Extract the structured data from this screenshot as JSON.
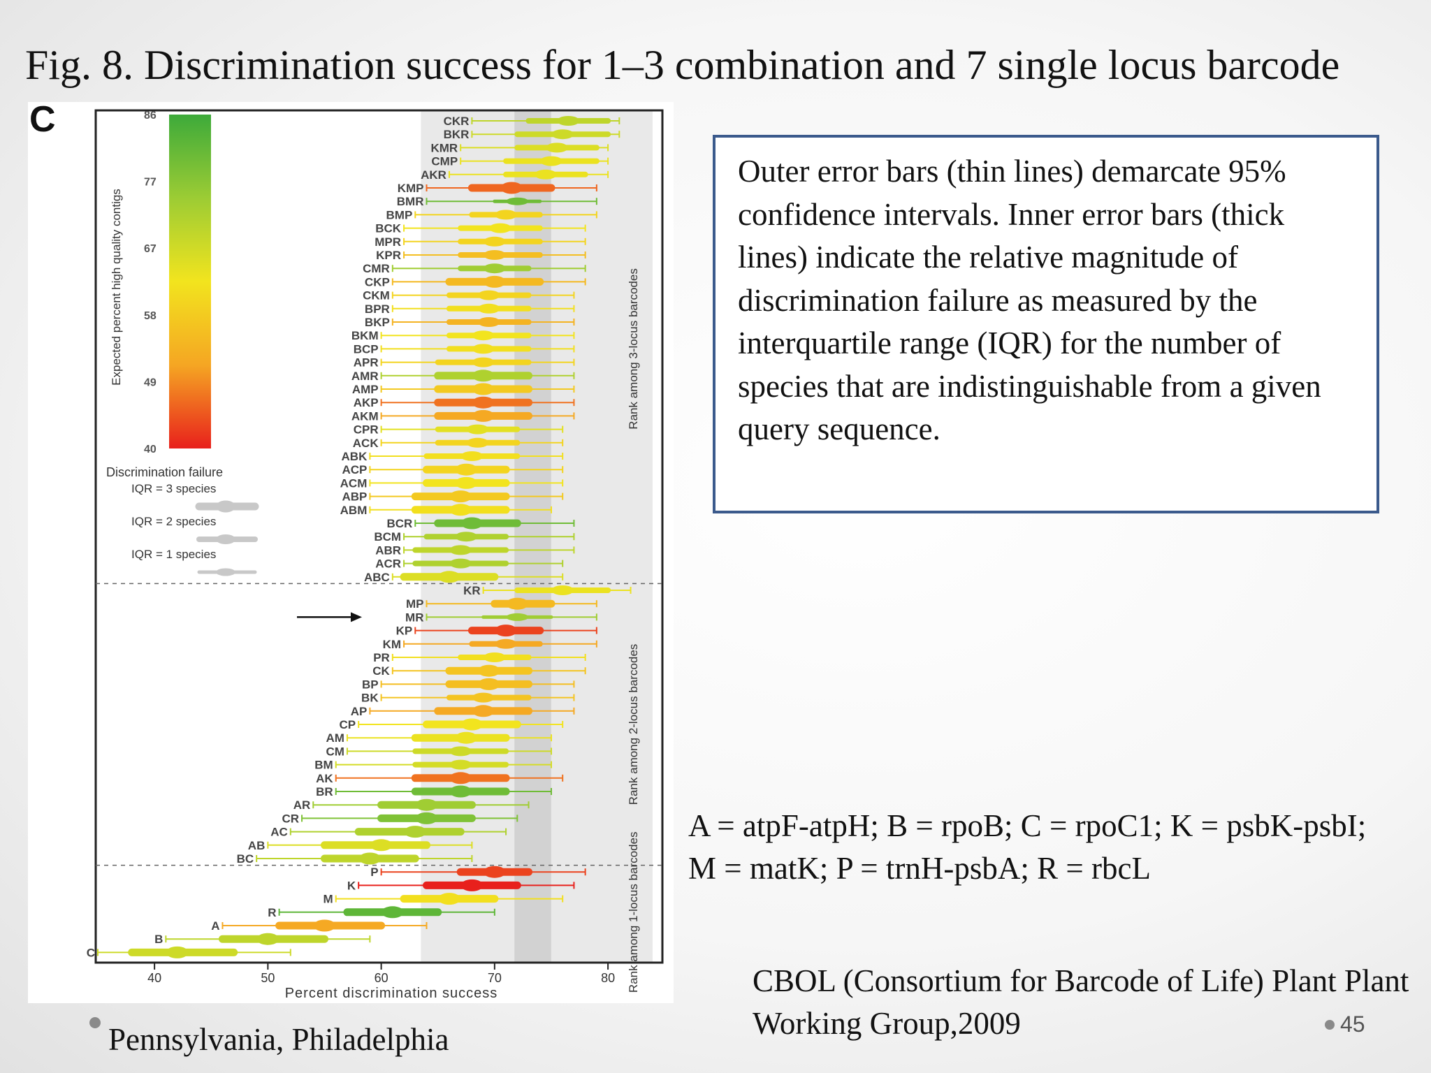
{
  "slide": {
    "title": "Fig. 8. Discrimination success for 1–3 combination and 7 single locus barcode",
    "description": "Outer error bars (thin lines) demarcate 95% confidence intervals. Inner error bars (thick lines) indicate the relative magnitude of discrimination failure as measured by the interquartile range (IQR) for the number of species that are indistinguishable from a given query sequence.",
    "legend_text": "A = atpF-atpH; B = rpoB; C = rpoC1; K = psbK-psbI; M = matK; P = trnH-psbA; R = rbcL",
    "citation": "CBOL (Consortium for Barcode of Life) Plant Plant Working Group,2009",
    "location": "Pennsylvania, Philadelphia",
    "page_number": "45"
  },
  "chart_data": {
    "type": "scatter",
    "panel_label": "C",
    "xlabel": "Percent discrimination success",
    "xticks": [
      40,
      50,
      60,
      70,
      80
    ],
    "xlim": [
      35,
      84
    ],
    "vertical_band": [
      72,
      74
    ],
    "colorbar": {
      "label": "Expected percent high quality contigs",
      "ticks": [
        86,
        77,
        67,
        58,
        49,
        40
      ],
      "colors": [
        "#3daa3a",
        "#9ccc34",
        "#f2e41e",
        "#f5a623",
        "#e8201c"
      ]
    },
    "iqr_legend": {
      "title": "Discrimination failure",
      "items": [
        "IQR = 3 species",
        "IQR = 2 species",
        "IQR = 1 species"
      ]
    },
    "groups": [
      {
        "label": "Rank among 3-locus barcodes"
      },
      {
        "label": "Rank among 2-locus barcodes"
      },
      {
        "label": "Rank among 1-locus barcodes"
      }
    ],
    "series": [
      {
        "name": "CKR",
        "group": 0,
        "value": 76.5,
        "ci": [
          68,
          81
        ],
        "iqr": [
          73,
          80
        ],
        "quality": 70,
        "iqr_species": 2
      },
      {
        "name": "BKR",
        "group": 0,
        "value": 76,
        "ci": [
          68,
          81
        ],
        "iqr": [
          72,
          80
        ],
        "quality": 68,
        "iqr_species": 2
      },
      {
        "name": "KMR",
        "group": 0,
        "value": 75.5,
        "ci": [
          67,
          80
        ],
        "iqr": [
          72,
          79
        ],
        "quality": 66,
        "iqr_species": 2
      },
      {
        "name": "CMP",
        "group": 0,
        "value": 75,
        "ci": [
          67,
          80
        ],
        "iqr": [
          71,
          79
        ],
        "quality": 64,
        "iqr_species": 2
      },
      {
        "name": "AKR",
        "group": 0,
        "value": 74.5,
        "ci": [
          66,
          80
        ],
        "iqr": [
          71,
          78
        ],
        "quality": 64,
        "iqr_species": 2
      },
      {
        "name": "KMP",
        "group": 0,
        "value": 71.5,
        "ci": [
          64,
          79
        ],
        "iqr": [
          68,
          75
        ],
        "quality": 46,
        "iqr_species": 3
      },
      {
        "name": "BMR",
        "group": 0,
        "value": 72,
        "ci": [
          64,
          79
        ],
        "iqr": [
          70,
          74
        ],
        "quality": 80,
        "iqr_species": 1
      },
      {
        "name": "BMP",
        "group": 0,
        "value": 71,
        "ci": [
          63,
          79
        ],
        "iqr": [
          68,
          74
        ],
        "quality": 60,
        "iqr_species": 2
      },
      {
        "name": "BCK",
        "group": 0,
        "value": 70.5,
        "ci": [
          62,
          78
        ],
        "iqr": [
          67,
          74
        ],
        "quality": 63,
        "iqr_species": 2
      },
      {
        "name": "MPR",
        "group": 0,
        "value": 70,
        "ci": [
          62,
          78
        ],
        "iqr": [
          67,
          74
        ],
        "quality": 60,
        "iqr_species": 2
      },
      {
        "name": "KPR",
        "group": 0,
        "value": 70,
        "ci": [
          62,
          78
        ],
        "iqr": [
          67,
          74
        ],
        "quality": 56,
        "iqr_species": 2
      },
      {
        "name": "CMR",
        "group": 0,
        "value": 70,
        "ci": [
          61,
          78
        ],
        "iqr": [
          67,
          73
        ],
        "quality": 74,
        "iqr_species": 2
      },
      {
        "name": "CKP",
        "group": 0,
        "value": 70,
        "ci": [
          61,
          78
        ],
        "iqr": [
          66,
          74
        ],
        "quality": 55,
        "iqr_species": 3
      },
      {
        "name": "CKM",
        "group": 0,
        "value": 69.5,
        "ci": [
          61,
          77
        ],
        "iqr": [
          66,
          73
        ],
        "quality": 60,
        "iqr_species": 2
      },
      {
        "name": "BPR",
        "group": 0,
        "value": 69.5,
        "ci": [
          61,
          77
        ],
        "iqr": [
          66,
          73
        ],
        "quality": 62,
        "iqr_species": 2
      },
      {
        "name": "BKP",
        "group": 0,
        "value": 69.5,
        "ci": [
          61,
          77
        ],
        "iqr": [
          66,
          73
        ],
        "quality": 54,
        "iqr_species": 2
      },
      {
        "name": "BKM",
        "group": 0,
        "value": 69,
        "ci": [
          60,
          77
        ],
        "iqr": [
          66,
          73
        ],
        "quality": 63,
        "iqr_species": 2
      },
      {
        "name": "BCP",
        "group": 0,
        "value": 69,
        "ci": [
          60,
          77
        ],
        "iqr": [
          66,
          73
        ],
        "quality": 62,
        "iqr_species": 2
      },
      {
        "name": "APR",
        "group": 0,
        "value": 69,
        "ci": [
          60,
          77
        ],
        "iqr": [
          65,
          73
        ],
        "quality": 60,
        "iqr_species": 2
      },
      {
        "name": "AMR",
        "group": 0,
        "value": 69,
        "ci": [
          60,
          77
        ],
        "iqr": [
          65,
          73
        ],
        "quality": 72,
        "iqr_species": 3
      },
      {
        "name": "AMP",
        "group": 0,
        "value": 69,
        "ci": [
          60,
          77
        ],
        "iqr": [
          65,
          73
        ],
        "quality": 58,
        "iqr_species": 3
      },
      {
        "name": "AKP",
        "group": 0,
        "value": 69,
        "ci": [
          60,
          77
        ],
        "iqr": [
          65,
          73
        ],
        "quality": 47,
        "iqr_species": 3
      },
      {
        "name": "AKM",
        "group": 0,
        "value": 69,
        "ci": [
          60,
          77
        ],
        "iqr": [
          65,
          73
        ],
        "quality": 52,
        "iqr_species": 3
      },
      {
        "name": "CPR",
        "group": 0,
        "value": 68.5,
        "ci": [
          60,
          76
        ],
        "iqr": [
          65,
          72
        ],
        "quality": 65,
        "iqr_species": 2
      },
      {
        "name": "ACK",
        "group": 0,
        "value": 68.5,
        "ci": [
          60,
          76
        ],
        "iqr": [
          65,
          72
        ],
        "quality": 60,
        "iqr_species": 2
      },
      {
        "name": "ABK",
        "group": 0,
        "value": 68,
        "ci": [
          59,
          76
        ],
        "iqr": [
          64,
          72
        ],
        "quality": 62,
        "iqr_species": 2
      },
      {
        "name": "ACP",
        "group": 0,
        "value": 67.5,
        "ci": [
          59,
          76
        ],
        "iqr": [
          64,
          71
        ],
        "quality": 60,
        "iqr_species": 3
      },
      {
        "name": "ACM",
        "group": 0,
        "value": 67.5,
        "ci": [
          59,
          76
        ],
        "iqr": [
          64,
          71
        ],
        "quality": 63,
        "iqr_species": 3
      },
      {
        "name": "ABP",
        "group": 0,
        "value": 67,
        "ci": [
          59,
          76
        ],
        "iqr": [
          63,
          71
        ],
        "quality": 58,
        "iqr_species": 3
      },
      {
        "name": "ABM",
        "group": 0,
        "value": 67,
        "ci": [
          59,
          75
        ],
        "iqr": [
          63,
          71
        ],
        "quality": 62,
        "iqr_species": 3
      },
      {
        "name": "BCR",
        "group": 0,
        "value": 68,
        "ci": [
          63,
          77
        ],
        "iqr": [
          65,
          72
        ],
        "quality": 80,
        "iqr_species": 3
      },
      {
        "name": "BCM",
        "group": 0,
        "value": 67.5,
        "ci": [
          62,
          77
        ],
        "iqr": [
          64,
          71
        ],
        "quality": 72,
        "iqr_species": 2
      },
      {
        "name": "ABR",
        "group": 0,
        "value": 67,
        "ci": [
          62,
          77
        ],
        "iqr": [
          63,
          71
        ],
        "quality": 70,
        "iqr_species": 2
      },
      {
        "name": "ACR",
        "group": 0,
        "value": 67,
        "ci": [
          62,
          76
        ],
        "iqr": [
          63,
          71
        ],
        "quality": 72,
        "iqr_species": 2
      },
      {
        "name": "ABC",
        "group": 0,
        "value": 66,
        "ci": [
          61,
          76
        ],
        "iqr": [
          62,
          70
        ],
        "quality": 66,
        "iqr_species": 3
      },
      {
        "name": "KR",
        "group": 1,
        "value": 76,
        "ci": [
          69,
          82
        ],
        "iqr": [
          72,
          80
        ],
        "quality": 64,
        "iqr_species": 2
      },
      {
        "name": "MP",
        "group": 1,
        "value": 72,
        "ci": [
          64,
          79
        ],
        "iqr": [
          70,
          75
        ],
        "quality": 55,
        "iqr_species": 3
      },
      {
        "name": "MR",
        "group": 1,
        "value": 72,
        "ci": [
          64,
          79
        ],
        "iqr": [
          69,
          75
        ],
        "quality": 74,
        "iqr_species": 1
      },
      {
        "name": "KP",
        "group": 1,
        "value": 71,
        "ci": [
          63,
          79
        ],
        "iqr": [
          68,
          74
        ],
        "quality": 43,
        "iqr_species": 3
      },
      {
        "name": "KM",
        "group": 1,
        "value": 71,
        "ci": [
          62,
          79
        ],
        "iqr": [
          68,
          74
        ],
        "quality": 52,
        "iqr_species": 2
      },
      {
        "name": "PR",
        "group": 1,
        "value": 70,
        "ci": [
          61,
          78
        ],
        "iqr": [
          67,
          73
        ],
        "quality": 62,
        "iqr_species": 2
      },
      {
        "name": "CK",
        "group": 1,
        "value": 69.5,
        "ci": [
          61,
          78
        ],
        "iqr": [
          66,
          73
        ],
        "quality": 57,
        "iqr_species": 3
      },
      {
        "name": "BP",
        "group": 1,
        "value": 69.5,
        "ci": [
          60,
          77
        ],
        "iqr": [
          66,
          73
        ],
        "quality": 56,
        "iqr_species": 3
      },
      {
        "name": "BK",
        "group": 1,
        "value": 69,
        "ci": [
          60,
          77
        ],
        "iqr": [
          66,
          73
        ],
        "quality": 57,
        "iqr_species": 2
      },
      {
        "name": "AP",
        "group": 1,
        "value": 69,
        "ci": [
          59,
          77
        ],
        "iqr": [
          65,
          73
        ],
        "quality": 52,
        "iqr_species": 3
      },
      {
        "name": "CP",
        "group": 1,
        "value": 68,
        "ci": [
          58,
          76
        ],
        "iqr": [
          64,
          72
        ],
        "quality": 63,
        "iqr_species": 3
      },
      {
        "name": "AM",
        "group": 1,
        "value": 67.5,
        "ci": [
          57,
          75
        ],
        "iqr": [
          63,
          71
        ],
        "quality": 64,
        "iqr_species": 3
      },
      {
        "name": "CM",
        "group": 1,
        "value": 67,
        "ci": [
          57,
          75
        ],
        "iqr": [
          63,
          71
        ],
        "quality": 68,
        "iqr_species": 2
      },
      {
        "name": "BM",
        "group": 1,
        "value": 67,
        "ci": [
          56,
          75
        ],
        "iqr": [
          63,
          71
        ],
        "quality": 67,
        "iqr_species": 2
      },
      {
        "name": "AK",
        "group": 1,
        "value": 67,
        "ci": [
          56,
          76
        ],
        "iqr": [
          63,
          71
        ],
        "quality": 47,
        "iqr_species": 3
      },
      {
        "name": "BR",
        "group": 1,
        "value": 67,
        "ci": [
          56,
          75
        ],
        "iqr": [
          63,
          71
        ],
        "quality": 80,
        "iqr_species": 3
      },
      {
        "name": "AR",
        "group": 1,
        "value": 64,
        "ci": [
          54,
          73
        ],
        "iqr": [
          60,
          68
        ],
        "quality": 74,
        "iqr_species": 3
      },
      {
        "name": "CR",
        "group": 1,
        "value": 64,
        "ci": [
          53,
          72
        ],
        "iqr": [
          60,
          68
        ],
        "quality": 78,
        "iqr_species": 3
      },
      {
        "name": "AC",
        "group": 1,
        "value": 63,
        "ci": [
          52,
          71
        ],
        "iqr": [
          58,
          67
        ],
        "quality": 72,
        "iqr_species": 3
      },
      {
        "name": "AB",
        "group": 1,
        "value": 60,
        "ci": [
          50,
          68
        ],
        "iqr": [
          55,
          64
        ],
        "quality": 66,
        "iqr_species": 3
      },
      {
        "name": "BC",
        "group": 1,
        "value": 59,
        "ci": [
          49,
          68
        ],
        "iqr": [
          55,
          63
        ],
        "quality": 70,
        "iqr_species": 3
      },
      {
        "name": "P",
        "group": 2,
        "value": 70,
        "ci": [
          60,
          78
        ],
        "iqr": [
          67,
          73
        ],
        "quality": 43,
        "iqr_species": 3
      },
      {
        "name": "K",
        "group": 2,
        "value": 68,
        "ci": [
          58,
          77
        ],
        "iqr": [
          64,
          72
        ],
        "quality": 40,
        "iqr_species": 3
      },
      {
        "name": "M",
        "group": 2,
        "value": 66,
        "ci": [
          56,
          76
        ],
        "iqr": [
          62,
          70
        ],
        "quality": 62,
        "iqr_species": 3
      },
      {
        "name": "R",
        "group": 2,
        "value": 61,
        "ci": [
          51,
          70
        ],
        "iqr": [
          57,
          65
        ],
        "quality": 82,
        "iqr_species": 3
      },
      {
        "name": "A",
        "group": 2,
        "value": 55,
        "ci": [
          46,
          64
        ],
        "iqr": [
          51,
          60
        ],
        "quality": 52,
        "iqr_species": 3
      },
      {
        "name": "B",
        "group": 2,
        "value": 50,
        "ci": [
          41,
          59
        ],
        "iqr": [
          46,
          55
        ],
        "quality": 70,
        "iqr_species": 3
      },
      {
        "name": "C",
        "group": 2,
        "value": 42,
        "ci": [
          35,
          52
        ],
        "iqr": [
          38,
          47
        ],
        "quality": 68,
        "iqr_species": 3
      }
    ]
  }
}
